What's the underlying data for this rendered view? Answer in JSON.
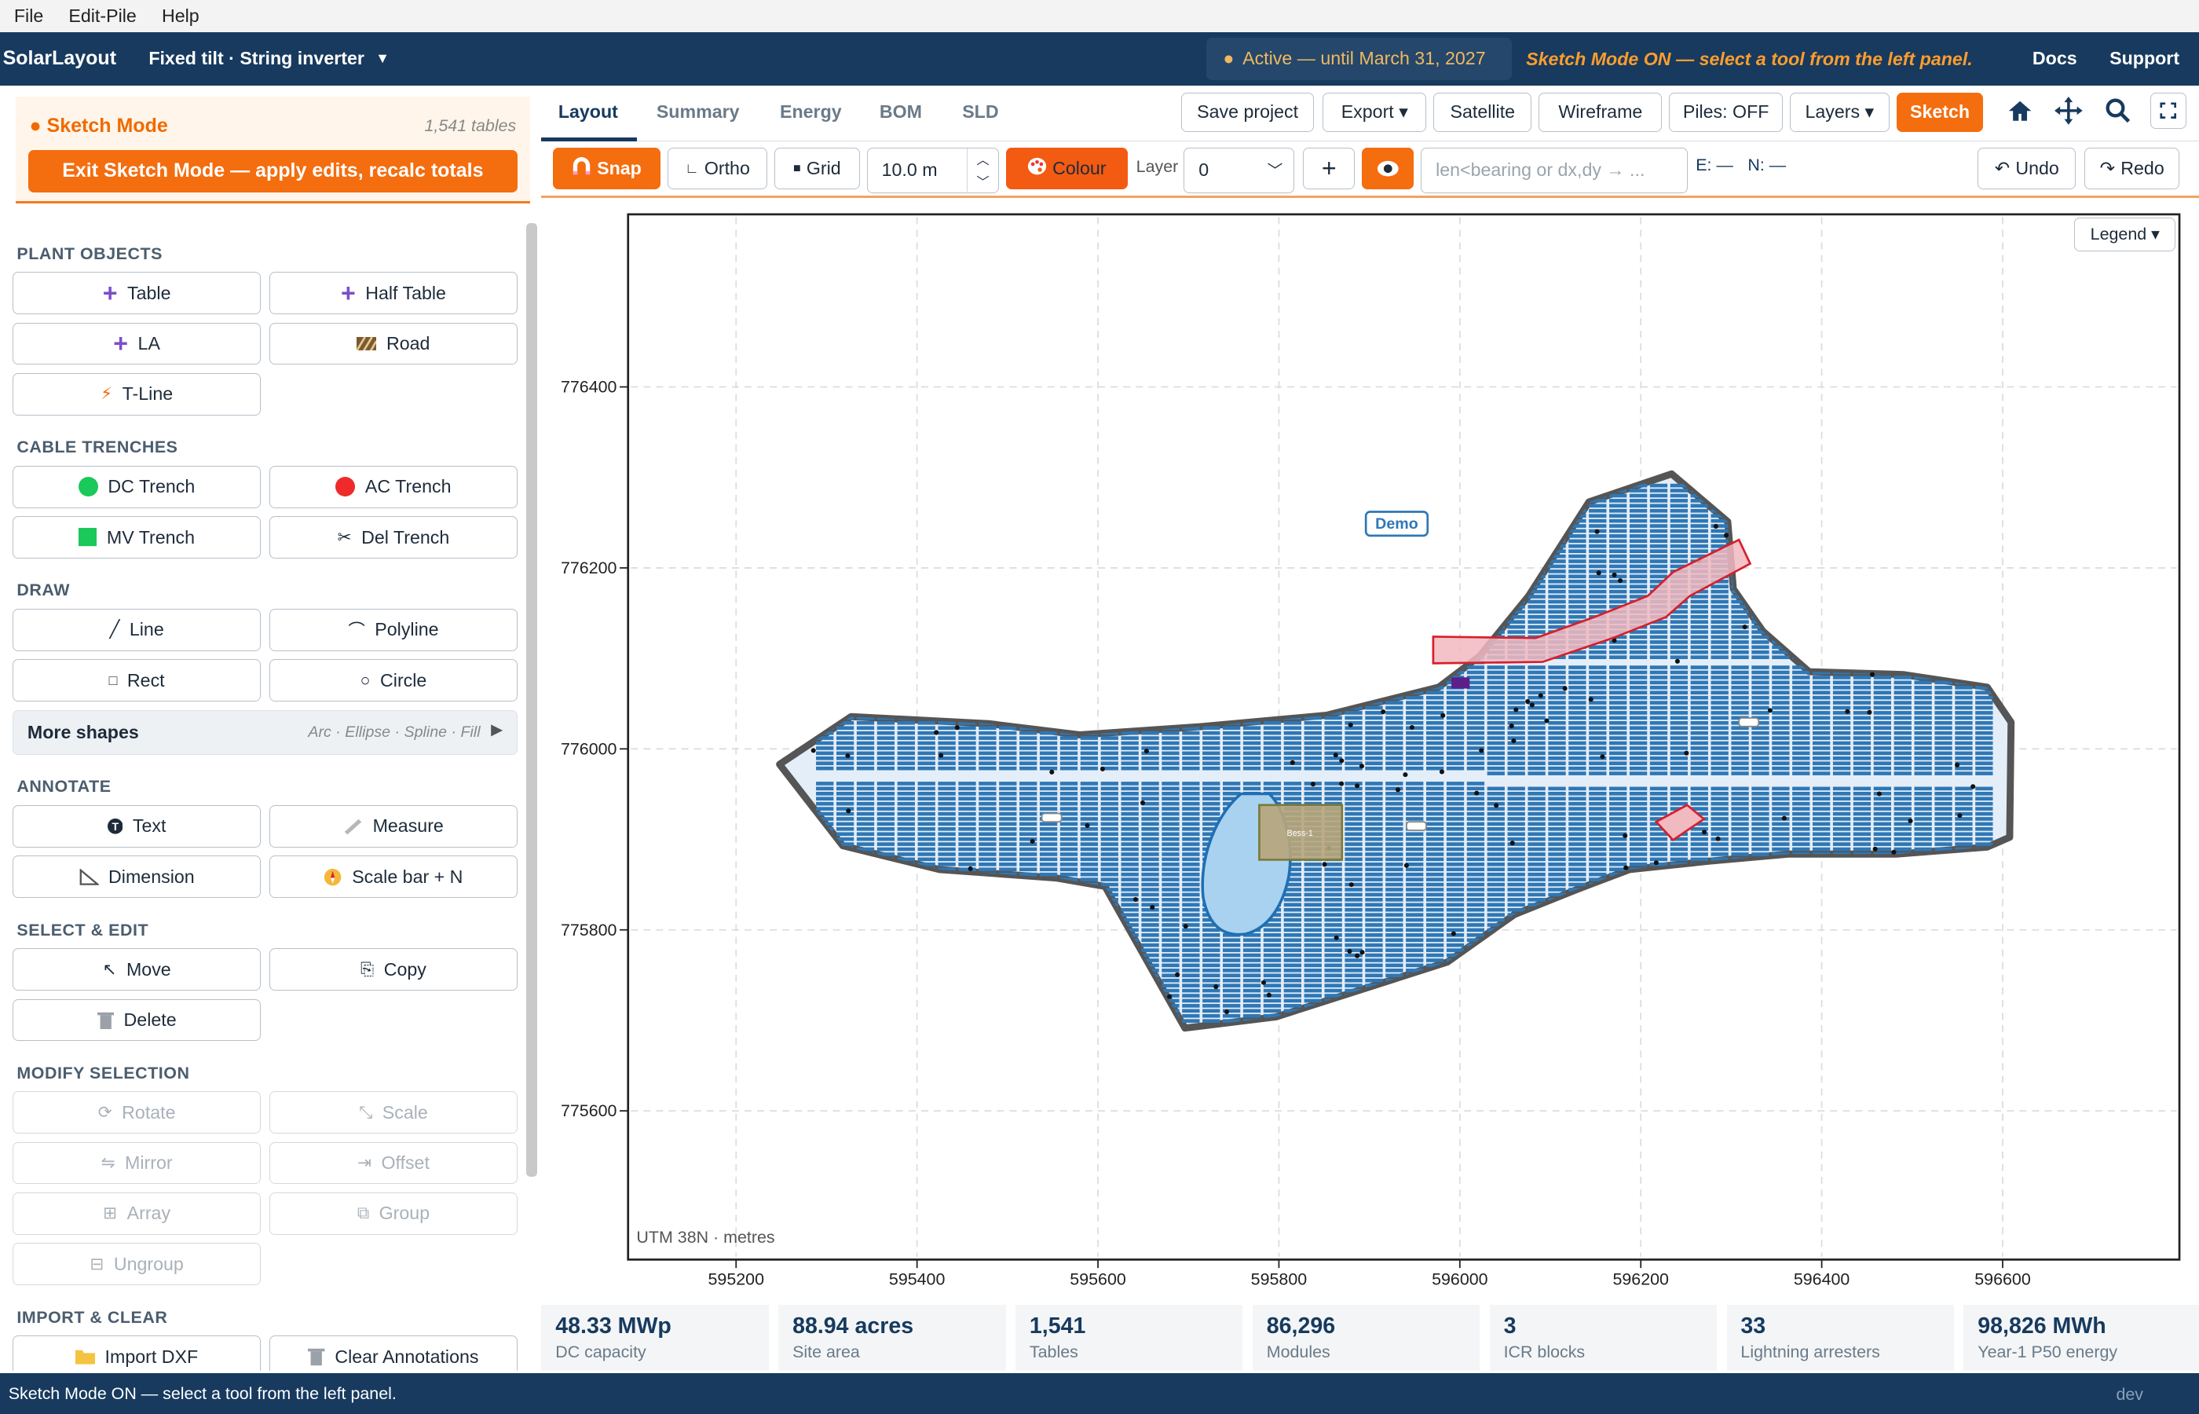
{
  "menu": [
    "File",
    "Edit-Pile",
    "Help"
  ],
  "topbar": {
    "brand": "SolarLayout",
    "config": "Fixed tilt · String inverter",
    "license": "Active — until March 31, 2027",
    "sketch_msg": "Sketch Mode ON — select a tool from the left panel.",
    "docs": "Docs",
    "support": "Support"
  },
  "sketch": {
    "title": "Sketch Mode",
    "count": "1,541 tables",
    "exit_label": "Exit Sketch Mode — apply edits, recalc totals"
  },
  "sections": {
    "plant": "PLANT OBJECTS",
    "cable": "CABLE TRENCHES",
    "draw": "DRAW",
    "annotate": "ANNOTATE",
    "select": "SELECT & EDIT",
    "modify": "MODIFY SELECTION",
    "import": "IMPORT & CLEAR"
  },
  "tools": {
    "table": "Table",
    "half_table": "Half Table",
    "la": "LA",
    "road": "Road",
    "tline": "T-Line",
    "dc": "DC Trench",
    "ac": "AC Trench",
    "mv": "MV Trench",
    "del": "Del Trench",
    "line": "Line",
    "polyline": "Polyline",
    "rect": "Rect",
    "circle": "Circle",
    "text": "Text",
    "measure": "Measure",
    "dimension": "Dimension",
    "scalebar": "Scale bar + N",
    "move": "Move",
    "copy": "Copy",
    "delete": "Delete",
    "rotate": "Rotate",
    "scale": "Scale",
    "mirror": "Mirror",
    "offset": "Offset",
    "array": "Array",
    "group": "Group",
    "ungroup": "Ungroup",
    "import_dxf": "Import DXF",
    "clear_ann": "Clear Annotations"
  },
  "more_shapes": {
    "label": "More shapes",
    "hint": "Arc · Ellipse · Spline · Fill"
  },
  "tabs": [
    "Layout",
    "Summary",
    "Energy",
    "BOM",
    "SLD"
  ],
  "actions": {
    "save": "Save project",
    "export": "Export ▾",
    "satellite": "Satellite",
    "wireframe": "Wireframe",
    "piles": "Piles: OFF",
    "layers": "Layers ▾",
    "sketch": "Sketch"
  },
  "sketchbar": {
    "snap": "Snap",
    "ortho": "Ortho",
    "grid": "Grid",
    "grid_value": "10.0 m",
    "colour": "Colour",
    "layer_label": "Layer",
    "layer_value": "0",
    "add": "+",
    "coord_placeholder": "len<bearing  or  dx,dy  → ...",
    "e": "E: —",
    "n": "N: —",
    "undo": "Undo",
    "redo": "Redo"
  },
  "map": {
    "legend": "Legend ▾",
    "crs": "UTM 38N · metres",
    "demo_label": "Demo",
    "bess_label": "Bess-1",
    "x_ticks": [
      "595200",
      "595400",
      "595600",
      "595800",
      "596000",
      "596200",
      "596400",
      "596600"
    ],
    "y_ticks": [
      "776400",
      "776200",
      "776000",
      "775800",
      "775600"
    ]
  },
  "stats": [
    {
      "value": "48.33 MWp",
      "label": "DC capacity"
    },
    {
      "value": "88.94 acres",
      "label": "Site area"
    },
    {
      "value": "1,541",
      "label": "Tables"
    },
    {
      "value": "86,296",
      "label": "Modules"
    },
    {
      "value": "3",
      "label": "ICR blocks"
    },
    {
      "value": "33",
      "label": "Lightning arresters"
    },
    {
      "value": "98,826 MWh",
      "label": "Year-1 P50 energy"
    }
  ],
  "status": {
    "text": "Sketch Mode ON — select a tool from the left panel.",
    "dev": "dev"
  },
  "colors": {
    "accent": "#f46d0f",
    "navy": "#173a5e",
    "panel_blue": "#2f77b5"
  }
}
